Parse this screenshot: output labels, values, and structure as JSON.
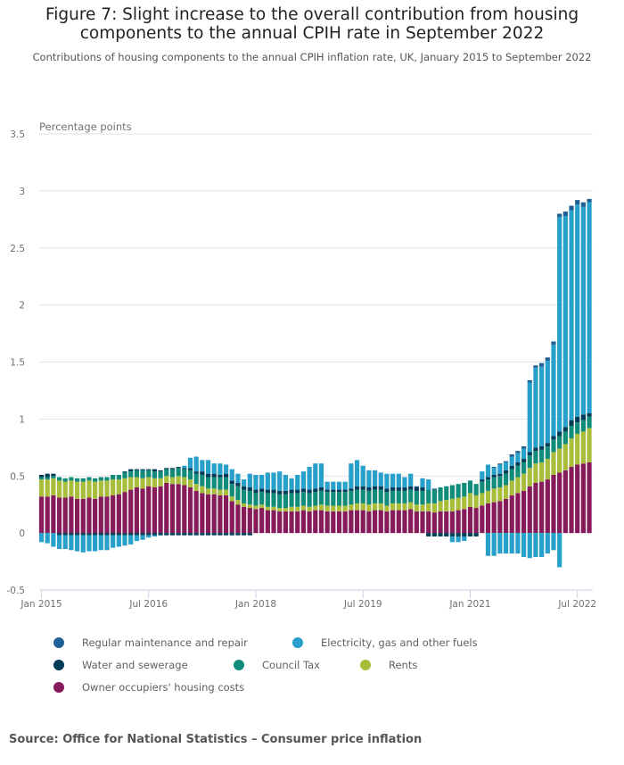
{
  "title": "Figure 7: Slight increase to the overall contribution from housing components to the annual CPIH rate in September 2022",
  "title_line1": "Figure 7: Slight increase to the overall contribution from housing",
  "title_line2": "components to the annual CPIH rate in September 2022",
  "subtitle": "Contributions of housing components to the annual CPIH inflation rate, UK, January 2015 to September 2022",
  "source": "Source: Office for National Statistics – Consumer price inflation",
  "chart_data": {
    "type": "bar",
    "stacked": true,
    "title": "Figure 7: Slight increase to the overall contribution from housing components to the annual CPIH rate in September 2022",
    "subtitle": "Contributions of housing components to the annual CPIH inflation rate, UK, January 2015 to September 2022",
    "xlabel": "",
    "ylabel": "Percentage points",
    "ylim": [
      -0.5,
      3.5
    ],
    "yticks": [
      -0.5,
      0,
      0.5,
      1,
      1.5,
      2,
      2.5,
      3,
      3.5
    ],
    "ytick_labels": [
      "-0.5",
      "0",
      "0.5",
      "1",
      "1.5",
      "2",
      "2.5",
      "3",
      "3.5"
    ],
    "grid": true,
    "legend_position": "bottom",
    "x_start": "Jan 2015",
    "x_end": "Sep 2022",
    "xtick_labels": [
      {
        "label": "Jan 2015",
        "index": 0
      },
      {
        "label": "Jul 2016",
        "index": 18
      },
      {
        "label": "Jan 2018",
        "index": 36
      },
      {
        "label": "Jul 2019",
        "index": 54
      },
      {
        "label": "Jan 2021",
        "index": 72
      },
      {
        "label": "Jul 2022",
        "index": 90
      }
    ],
    "series": [
      {
        "name": "Owner occupiers' housing costs",
        "color": "#871a5b",
        "values": [
          0.32,
          0.32,
          0.33,
          0.31,
          0.31,
          0.32,
          0.3,
          0.3,
          0.31,
          0.3,
          0.32,
          0.32,
          0.33,
          0.34,
          0.36,
          0.38,
          0.4,
          0.39,
          0.41,
          0.4,
          0.41,
          0.44,
          0.43,
          0.43,
          0.42,
          0.4,
          0.37,
          0.35,
          0.34,
          0.34,
          0.33,
          0.33,
          0.28,
          0.25,
          0.23,
          0.22,
          0.21,
          0.22,
          0.2,
          0.2,
          0.19,
          0.19,
          0.19,
          0.19,
          0.2,
          0.19,
          0.2,
          0.2,
          0.19,
          0.19,
          0.19,
          0.19,
          0.2,
          0.2,
          0.2,
          0.19,
          0.2,
          0.2,
          0.19,
          0.2,
          0.2,
          0.2,
          0.21,
          0.19,
          0.19,
          0.19,
          0.18,
          0.19,
          0.19,
          0.19,
          0.2,
          0.21,
          0.23,
          0.22,
          0.24,
          0.26,
          0.27,
          0.28,
          0.3,
          0.33,
          0.35,
          0.37,
          0.41,
          0.44,
          0.45,
          0.47,
          0.51,
          0.53,
          0.55,
          0.58,
          0.6,
          0.61,
          0.62
        ]
      },
      {
        "name": "Rents",
        "color": "#a8bd3a",
        "values": [
          0.15,
          0.15,
          0.15,
          0.15,
          0.14,
          0.14,
          0.15,
          0.15,
          0.15,
          0.15,
          0.14,
          0.14,
          0.14,
          0.13,
          0.12,
          0.11,
          0.09,
          0.09,
          0.08,
          0.08,
          0.07,
          0.06,
          0.06,
          0.07,
          0.07,
          0.07,
          0.06,
          0.06,
          0.05,
          0.05,
          0.05,
          0.05,
          0.04,
          0.04,
          0.03,
          0.03,
          0.03,
          0.03,
          0.03,
          0.03,
          0.03,
          0.03,
          0.04,
          0.04,
          0.04,
          0.04,
          0.04,
          0.05,
          0.05,
          0.05,
          0.05,
          0.05,
          0.05,
          0.06,
          0.06,
          0.06,
          0.06,
          0.06,
          0.05,
          0.06,
          0.06,
          0.06,
          0.06,
          0.06,
          0.06,
          0.07,
          0.08,
          0.09,
          0.1,
          0.11,
          0.11,
          0.11,
          0.12,
          0.11,
          0.11,
          0.11,
          0.12,
          0.12,
          0.12,
          0.13,
          0.14,
          0.15,
          0.16,
          0.17,
          0.17,
          0.18,
          0.2,
          0.21,
          0.23,
          0.25,
          0.27,
          0.28,
          0.3
        ]
      },
      {
        "name": "Council Tax",
        "color": "#118c7b",
        "values": [
          0.02,
          0.02,
          0.02,
          0.03,
          0.03,
          0.03,
          0.03,
          0.03,
          0.03,
          0.03,
          0.03,
          0.03,
          0.04,
          0.04,
          0.05,
          0.05,
          0.06,
          0.07,
          0.06,
          0.06,
          0.06,
          0.06,
          0.07,
          0.07,
          0.07,
          0.08,
          0.09,
          0.1,
          0.1,
          0.1,
          0.11,
          0.11,
          0.11,
          0.12,
          0.12,
          0.12,
          0.11,
          0.11,
          0.12,
          0.12,
          0.12,
          0.12,
          0.12,
          0.12,
          0.12,
          0.12,
          0.12,
          0.12,
          0.12,
          0.12,
          0.12,
          0.12,
          0.12,
          0.12,
          0.12,
          0.12,
          0.12,
          0.12,
          0.12,
          0.11,
          0.11,
          0.11,
          0.11,
          0.12,
          0.12,
          0.12,
          0.12,
          0.12,
          0.12,
          0.12,
          0.12,
          0.12,
          0.11,
          0.1,
          0.1,
          0.1,
          0.1,
          0.1,
          0.1,
          0.1,
          0.1,
          0.1,
          0.11,
          0.11,
          0.11,
          0.11,
          0.11,
          0.11,
          0.11,
          0.11,
          0.1,
          0.1,
          0.1
        ]
      },
      {
        "name": "Water and sewerage",
        "color": "#003c57",
        "values": [
          0.02,
          0.03,
          0.02,
          0.0,
          0.0,
          0.0,
          0.0,
          0.0,
          0.0,
          0.0,
          0.0,
          0.0,
          0.0,
          0.0,
          0.01,
          0.02,
          0.01,
          0.01,
          0.01,
          0.02,
          0.01,
          0.01,
          0.01,
          0.01,
          0.01,
          0.02,
          0.02,
          0.03,
          0.03,
          0.03,
          0.02,
          0.03,
          0.03,
          0.03,
          0.03,
          0.03,
          0.03,
          0.03,
          0.03,
          0.03,
          0.03,
          0.03,
          0.03,
          0.03,
          0.03,
          0.03,
          0.03,
          0.03,
          0.02,
          0.02,
          0.02,
          0.02,
          0.02,
          0.03,
          0.03,
          0.03,
          0.03,
          0.03,
          0.03,
          0.03,
          0.03,
          0.03,
          0.03,
          0.03,
          0.03,
          0.0,
          0.0,
          0.0,
          0.0,
          0.0,
          0.0,
          0.0,
          0.0,
          0.0,
          0.02,
          0.02,
          0.02,
          0.02,
          0.03,
          0.03,
          0.03,
          0.03,
          0.03,
          0.03,
          0.03,
          0.03,
          0.03,
          0.04,
          0.04,
          0.05,
          0.05,
          0.05,
          0.03
        ]
      },
      {
        "name": "Electricity, gas and other fuels",
        "color": "#27a0cc",
        "values": [
          0.0,
          0.0,
          0.0,
          0.0,
          0.0,
          0.0,
          0.0,
          0.0,
          0.0,
          0.0,
          0.0,
          0.0,
          0.0,
          0.0,
          0.0,
          0.0,
          0.0,
          0.0,
          0.0,
          0.0,
          0.0,
          0.0,
          0.0,
          0.0,
          0.02,
          0.09,
          0.13,
          0.1,
          0.12,
          0.09,
          0.1,
          0.08,
          0.1,
          0.08,
          0.06,
          0.12,
          0.13,
          0.12,
          0.15,
          0.15,
          0.17,
          0.14,
          0.1,
          0.13,
          0.15,
          0.2,
          0.22,
          0.21,
          0.07,
          0.07,
          0.07,
          0.07,
          0.22,
          0.23,
          0.18,
          0.15,
          0.14,
          0.12,
          0.13,
          0.12,
          0.12,
          0.09,
          0.11,
          0.0,
          0.08,
          0.09,
          0.0,
          0.0,
          0.0,
          0.0,
          0.0,
          0.0,
          0.0,
          0.0,
          0.07,
          0.11,
          0.06,
          0.08,
          0.07,
          0.08,
          0.08,
          0.09,
          0.61,
          0.7,
          0.7,
          0.72,
          0.8,
          1.88,
          1.85,
          1.84,
          1.86,
          1.82,
          1.85
        ]
      },
      {
        "name": "Regular maintenance and repair",
        "color": "#206095",
        "values": [
          0.0,
          0.0,
          0.0,
          0.0,
          0.0,
          0.0,
          0.0,
          0.0,
          0.0,
          0.0,
          0.0,
          0.0,
          0.0,
          0.0,
          0.0,
          0.0,
          0.0,
          0.0,
          0.0,
          0.0,
          0.0,
          0.0,
          0.0,
          0.0,
          0.0,
          0.0,
          0.0,
          0.0,
          0.0,
          0.0,
          0.0,
          0.0,
          0.0,
          0.0,
          0.0,
          0.0,
          0.0,
          0.0,
          0.0,
          0.0,
          0.0,
          0.0,
          0.0,
          0.0,
          0.0,
          0.0,
          0.0,
          0.0,
          0.0,
          0.0,
          0.0,
          0.0,
          0.0,
          0.0,
          0.0,
          0.0,
          0.0,
          0.0,
          0.0,
          0.0,
          0.0,
          0.0,
          0.0,
          0.01,
          0.0,
          0.0,
          0.01,
          0.0,
          0.0,
          0.0,
          0.0,
          0.0,
          0.0,
          0.0,
          0.0,
          0.0,
          0.01,
          0.01,
          0.01,
          0.02,
          0.02,
          0.02,
          0.02,
          0.02,
          0.03,
          0.03,
          0.03,
          0.03,
          0.04,
          0.04,
          0.04,
          0.04,
          0.03
        ]
      }
    ],
    "negative_series": [
      {
        "name": "Water and sewerage",
        "color": "#003c57",
        "values": [
          0.0,
          0.0,
          0.0,
          -0.02,
          -0.02,
          -0.02,
          -0.02,
          -0.02,
          -0.02,
          -0.02,
          -0.02,
          -0.02,
          -0.02,
          -0.02,
          -0.02,
          -0.02,
          -0.02,
          -0.02,
          -0.02,
          -0.02,
          -0.02,
          -0.02,
          -0.02,
          -0.02,
          -0.02,
          -0.02,
          -0.02,
          -0.02,
          -0.02,
          -0.02,
          -0.02,
          -0.02,
          -0.02,
          -0.02,
          -0.02,
          -0.02,
          0.0,
          0.0,
          0.0,
          0.0,
          0.0,
          0.0,
          0.0,
          0.0,
          0.0,
          0.0,
          0.0,
          0.0,
          0.0,
          0.0,
          0.0,
          0.0,
          0.0,
          0.0,
          0.0,
          0.0,
          0.0,
          0.0,
          0.0,
          0.0,
          0.0,
          0.0,
          0.0,
          0.0,
          0.0,
          -0.03,
          -0.03,
          -0.03,
          -0.03,
          -0.03,
          -0.03,
          -0.03,
          -0.03,
          -0.03,
          0.0,
          0.0,
          0.0,
          0.0,
          0.0,
          0.0,
          0.0,
          0.0,
          0.0,
          0.0,
          0.0,
          0.0,
          0.0,
          0.0,
          0.0,
          0.0,
          0.0,
          0.0,
          0.0
        ]
      },
      {
        "name": "Electricity, gas and other fuels",
        "color": "#27a0cc",
        "values": [
          -0.08,
          -0.09,
          -0.12,
          -0.12,
          -0.12,
          -0.13,
          -0.14,
          -0.15,
          -0.14,
          -0.14,
          -0.13,
          -0.13,
          -0.11,
          -0.1,
          -0.09,
          -0.08,
          -0.05,
          -0.04,
          -0.02,
          -0.01,
          0.0,
          0.0,
          0.0,
          0.0,
          0.0,
          0.0,
          0.0,
          0.0,
          0.0,
          0.0,
          0.0,
          0.0,
          0.0,
          0.0,
          0.0,
          0.0,
          0.0,
          0.0,
          0.0,
          0.0,
          0.0,
          0.0,
          0.0,
          0.0,
          0.0,
          0.0,
          0.0,
          0.0,
          0.0,
          0.0,
          0.0,
          0.0,
          0.0,
          0.0,
          0.0,
          0.0,
          0.0,
          0.0,
          0.0,
          0.0,
          0.0,
          0.0,
          0.0,
          0.0,
          0.0,
          0.0,
          0.0,
          0.0,
          0.0,
          -0.05,
          -0.05,
          -0.04,
          0.0,
          0.0,
          0.0,
          -0.2,
          -0.2,
          -0.18,
          -0.18,
          -0.18,
          -0.18,
          -0.21,
          -0.22,
          -0.21,
          -0.21,
          -0.18,
          -0.15,
          -0.3,
          0.0,
          0.0,
          0.0,
          0.0,
          0.0
        ]
      }
    ]
  },
  "legend": [
    {
      "label": "Regular maintenance and repair",
      "color": "#206095"
    },
    {
      "label": "Electricity, gas and other fuels",
      "color": "#27a0cc"
    },
    {
      "label": "Water and sewerage",
      "color": "#003c57"
    },
    {
      "label": "Council Tax",
      "color": "#118c7b"
    },
    {
      "label": "Rents",
      "color": "#a8bd3a"
    },
    {
      "label": "Owner occupiers' housing costs",
      "color": "#871a5b"
    }
  ]
}
